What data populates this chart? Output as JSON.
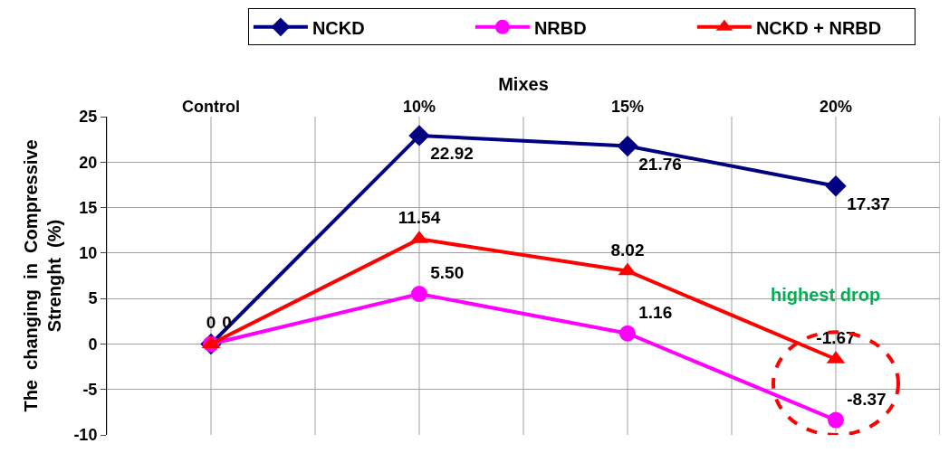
{
  "chart_data": {
    "type": "line",
    "xlabel": "Mixes",
    "ylabel": "The changing in  Compressive  Strenght  (%)",
    "categories": [
      "Control",
      "10%",
      "15%",
      "20%"
    ],
    "series": [
      {
        "name": "NCKD",
        "color": "#000080",
        "marker": "diamond",
        "values": [
          0,
          22.92,
          21.76,
          17.37
        ],
        "value_labels": [
          null,
          "22.92",
          "21.76",
          "17.37"
        ]
      },
      {
        "name": "NRBD",
        "color": "#ff00ff",
        "marker": "circle",
        "values": [
          0,
          5.5,
          1.16,
          -8.37
        ],
        "value_labels": [
          "0",
          "5.50",
          "1.16",
          "-8.37"
        ]
      },
      {
        "name": "NCKD + NRBD",
        "color": "#ff0000",
        "marker": "triangle",
        "values": [
          0,
          11.54,
          8.02,
          -1.67
        ],
        "value_labels": [
          "0",
          "11.54",
          "8.02",
          "-1.67"
        ]
      }
    ],
    "annotations": [
      "highest drop"
    ],
    "ylim": [
      -10,
      25
    ],
    "yticks": [
      -10,
      -5,
      0,
      5,
      10,
      15,
      20,
      25
    ],
    "grid": true,
    "legend": "top",
    "line_style": "solid"
  }
}
